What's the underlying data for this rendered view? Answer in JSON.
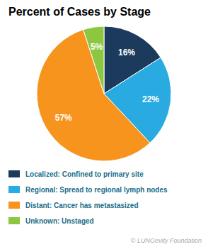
{
  "chart_data": {
    "type": "pie",
    "title": "Percent of Cases by Stage",
    "categories": [
      "Localized: Confined to primary site",
      "Regional: Spread to regional lymph nodes",
      "Distant: Cancer has metastasized",
      "Unknown: Unstaged"
    ],
    "values": [
      16,
      22,
      57,
      5
    ],
    "value_labels": [
      "16%",
      "22%",
      "57%",
      "5%"
    ],
    "data_labels": true,
    "colors": [
      "#1b3a5c",
      "#29abe2",
      "#f7941d",
      "#8dc63f"
    ],
    "legend": "bottom",
    "annotations": [
      "© LUNGevity Foundation"
    ]
  }
}
